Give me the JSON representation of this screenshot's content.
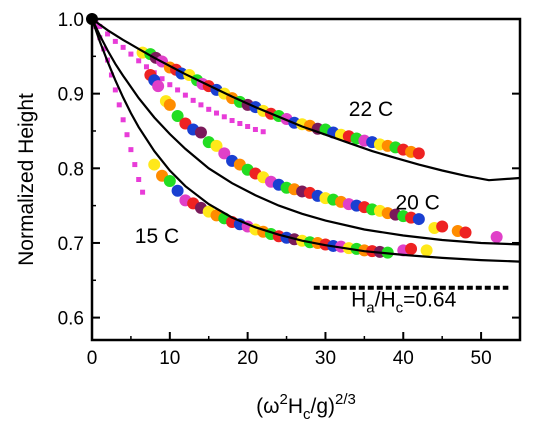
{
  "chart_data": {
    "type": "scatter",
    "xlabel": "",
    "ylabel": "Normalized Height",
    "xlim": [
      0,
      55
    ],
    "ylim": [
      0.57,
      1.0
    ],
    "x_ticks": [
      "0",
      "10",
      "20",
      "30",
      "40",
      "50"
    ],
    "x_tick_values": [
      0,
      10,
      20,
      30,
      40,
      50
    ],
    "y_ticks": [
      "0.6",
      "0.7",
      "0.8",
      "0.9",
      "1.0"
    ],
    "y_tick_values": [
      0.6,
      0.7,
      0.8,
      0.9,
      1.0
    ],
    "grid": false,
    "legend": "none",
    "point_colors": [
      "#1a3fd1",
      "#ffe81a",
      "#22dd22",
      "#ff8c00",
      "#ee2222",
      "#7a1a5a",
      "#e040c8"
    ],
    "square_color": "#e83cd8",
    "curve_color": "#000000",
    "origin_point": {
      "x": 0,
      "y": 1.0
    },
    "annotations": [
      {
        "text": "22 C",
        "x": 33,
        "y": 0.87
      },
      {
        "text": "20 C",
        "x": 39,
        "y": 0.745
      },
      {
        "text": "15 C",
        "x": 5.5,
        "y": 0.7
      }
    ],
    "ratio_label": {
      "main": "H",
      "sub1": "a",
      "slash": "/H",
      "sub2": "c",
      "rest": "=0.64"
    },
    "ratio_line": {
      "x0": 28.5,
      "x1": 53.5,
      "y": 0.64
    },
    "curves": [
      {
        "label": "22 C",
        "x": [
          0,
          2,
          4,
          6,
          8,
          10,
          12,
          15,
          18,
          21,
          24,
          27,
          30,
          33,
          36,
          39,
          42,
          45,
          48,
          51,
          55
        ],
        "y": [
          1.0,
          0.985,
          0.972,
          0.96,
          0.948,
          0.937,
          0.926,
          0.911,
          0.896,
          0.882,
          0.869,
          0.856,
          0.845,
          0.834,
          0.823,
          0.814,
          0.805,
          0.797,
          0.79,
          0.784,
          0.787
        ]
      },
      {
        "label": "20 C",
        "x": [
          0,
          1,
          2,
          3,
          4,
          6,
          8,
          10,
          12,
          15,
          18,
          21,
          24,
          27,
          30,
          35,
          40,
          45,
          50,
          55
        ],
        "y": [
          1.0,
          0.978,
          0.958,
          0.94,
          0.924,
          0.894,
          0.868,
          0.846,
          0.826,
          0.8,
          0.78,
          0.764,
          0.75,
          0.739,
          0.73,
          0.718,
          0.71,
          0.704,
          0.7,
          0.698
        ]
      },
      {
        "label": "15 C",
        "x": [
          0,
          1,
          2,
          3,
          4,
          5,
          6,
          8,
          10,
          12,
          15,
          18,
          21,
          24,
          27,
          30,
          35,
          40,
          45,
          50,
          55
        ],
        "y": [
          1.0,
          0.97,
          0.943,
          0.918,
          0.895,
          0.874,
          0.855,
          0.823,
          0.797,
          0.776,
          0.752,
          0.734,
          0.721,
          0.711,
          0.703,
          0.697,
          0.689,
          0.684,
          0.68,
          0.677,
          0.675
        ]
      }
    ],
    "square_series": [
      {
        "x": [
          0.5,
          1,
          1.5,
          2,
          2.5,
          3,
          3.5,
          4,
          4.5,
          5,
          5.5,
          6,
          6.5
        ],
        "y": [
          0.99,
          0.975,
          0.96,
          0.945,
          0.925,
          0.905,
          0.885,
          0.865,
          0.845,
          0.825,
          0.805,
          0.785,
          0.768
        ]
      },
      {
        "x": [
          0.5,
          1,
          2,
          3,
          4,
          5,
          6,
          7,
          8,
          9,
          10,
          11,
          12,
          13,
          14,
          15,
          16,
          17,
          18,
          19,
          20,
          21,
          22
        ],
        "y": [
          0.995,
          0.99,
          0.98,
          0.97,
          0.962,
          0.953,
          0.944,
          0.936,
          0.928,
          0.92,
          0.912,
          0.905,
          0.898,
          0.891,
          0.885,
          0.879,
          0.874,
          0.869,
          0.864,
          0.86,
          0.856,
          0.852,
          0.849
        ]
      }
    ],
    "series": [
      {
        "label": "22 C",
        "points": [
          [
            6.5,
            0.955,
            1
          ],
          [
            7.5,
            0.953,
            2
          ],
          [
            8.2,
            0.948,
            5
          ],
          [
            9,
            0.943,
            6
          ],
          [
            10,
            0.935,
            3
          ],
          [
            10.8,
            0.932,
            4
          ],
          [
            11.5,
            0.927,
            0
          ],
          [
            12.5,
            0.925,
            1
          ],
          [
            13.5,
            0.918,
            2
          ],
          [
            14.2,
            0.913,
            6
          ],
          [
            15,
            0.91,
            4
          ],
          [
            16,
            0.905,
            0
          ],
          [
            17,
            0.9,
            1
          ],
          [
            18,
            0.894,
            3
          ],
          [
            19,
            0.889,
            2
          ],
          [
            20,
            0.885,
            5
          ],
          [
            21,
            0.882,
            0
          ],
          [
            22,
            0.877,
            1
          ],
          [
            23,
            0.873,
            4
          ],
          [
            24,
            0.87,
            2
          ],
          [
            25,
            0.866,
            6
          ],
          [
            26,
            0.861,
            0
          ],
          [
            27,
            0.859,
            1
          ],
          [
            28,
            0.857,
            3
          ],
          [
            29,
            0.853,
            5
          ],
          [
            30,
            0.852,
            2
          ],
          [
            31,
            0.848,
            0
          ],
          [
            32,
            0.845,
            1
          ],
          [
            33,
            0.843,
            4
          ],
          [
            34,
            0.84,
            2
          ],
          [
            35,
            0.837,
            6
          ],
          [
            36,
            0.835,
            0
          ],
          [
            37,
            0.832,
            1
          ],
          [
            38,
            0.83,
            3
          ],
          [
            39,
            0.828,
            2
          ],
          [
            40,
            0.825,
            4
          ],
          [
            41,
            0.822,
            3
          ],
          [
            42,
            0.82,
            4
          ]
        ]
      },
      {
        "label": "20 C",
        "points": [
          [
            7.5,
            0.925,
            4
          ],
          [
            8,
            0.918,
            0
          ],
          [
            8.5,
            0.91,
            6
          ],
          [
            9.5,
            0.89,
            1
          ],
          [
            10,
            0.885,
            3
          ],
          [
            11,
            0.87,
            2
          ],
          [
            12,
            0.86,
            4
          ],
          [
            13,
            0.852,
            0
          ],
          [
            14,
            0.848,
            5
          ],
          [
            15,
            0.835,
            2
          ],
          [
            16,
            0.83,
            1
          ],
          [
            17,
            0.82,
            6
          ],
          [
            18,
            0.81,
            0
          ],
          [
            19,
            0.805,
            3
          ],
          [
            20,
            0.798,
            2
          ],
          [
            21,
            0.793,
            4
          ],
          [
            22,
            0.788,
            1
          ],
          [
            23,
            0.782,
            6
          ],
          [
            24,
            0.778,
            0
          ],
          [
            25,
            0.774,
            2
          ],
          [
            26,
            0.772,
            3
          ],
          [
            27,
            0.769,
            5
          ],
          [
            28,
            0.767,
            4
          ],
          [
            29,
            0.763,
            0
          ],
          [
            30,
            0.76,
            1
          ],
          [
            31,
            0.758,
            2
          ],
          [
            32,
            0.755,
            3
          ],
          [
            33,
            0.752,
            6
          ],
          [
            34,
            0.75,
            0
          ],
          [
            35,
            0.748,
            4
          ],
          [
            36,
            0.745,
            2
          ],
          [
            37,
            0.743,
            1
          ],
          [
            38,
            0.74,
            3
          ],
          [
            39,
            0.738,
            5
          ],
          [
            40,
            0.736,
            2
          ],
          [
            41,
            0.734,
            4
          ],
          [
            42,
            0.732,
            0
          ],
          [
            44,
            0.72,
            1
          ],
          [
            45,
            0.722,
            4
          ],
          [
            47,
            0.716,
            3
          ],
          [
            48,
            0.714,
            4
          ],
          [
            52,
            0.708,
            6
          ]
        ]
      },
      {
        "label": "15 C",
        "points": [
          [
            8,
            0.805,
            1
          ],
          [
            9,
            0.79,
            3
          ],
          [
            10,
            0.783,
            2
          ],
          [
            11,
            0.77,
            0
          ],
          [
            12,
            0.757,
            6
          ],
          [
            13,
            0.753,
            4
          ],
          [
            14,
            0.747,
            5
          ],
          [
            15,
            0.742,
            1
          ],
          [
            16,
            0.737,
            3
          ],
          [
            17,
            0.733,
            2
          ],
          [
            18,
            0.728,
            4
          ],
          [
            19,
            0.725,
            0
          ],
          [
            20,
            0.722,
            6
          ],
          [
            21,
            0.718,
            1
          ],
          [
            22,
            0.715,
            3
          ],
          [
            23,
            0.712,
            2
          ],
          [
            24,
            0.709,
            4
          ],
          [
            25,
            0.707,
            0
          ],
          [
            26,
            0.705,
            5
          ],
          [
            27,
            0.703,
            1
          ],
          [
            28,
            0.701,
            2
          ],
          [
            29,
            0.7,
            3
          ],
          [
            30,
            0.698,
            4
          ],
          [
            31,
            0.696,
            0
          ],
          [
            32,
            0.695,
            6
          ],
          [
            33,
            0.693,
            1
          ],
          [
            34,
            0.692,
            2
          ],
          [
            35,
            0.69,
            3
          ],
          [
            36,
            0.689,
            4
          ],
          [
            37,
            0.688,
            5
          ],
          [
            38,
            0.687,
            2
          ],
          [
            40,
            0.69,
            6
          ],
          [
            41,
            0.692,
            4
          ],
          [
            43,
            0.69,
            1
          ]
        ]
      }
    ]
  }
}
